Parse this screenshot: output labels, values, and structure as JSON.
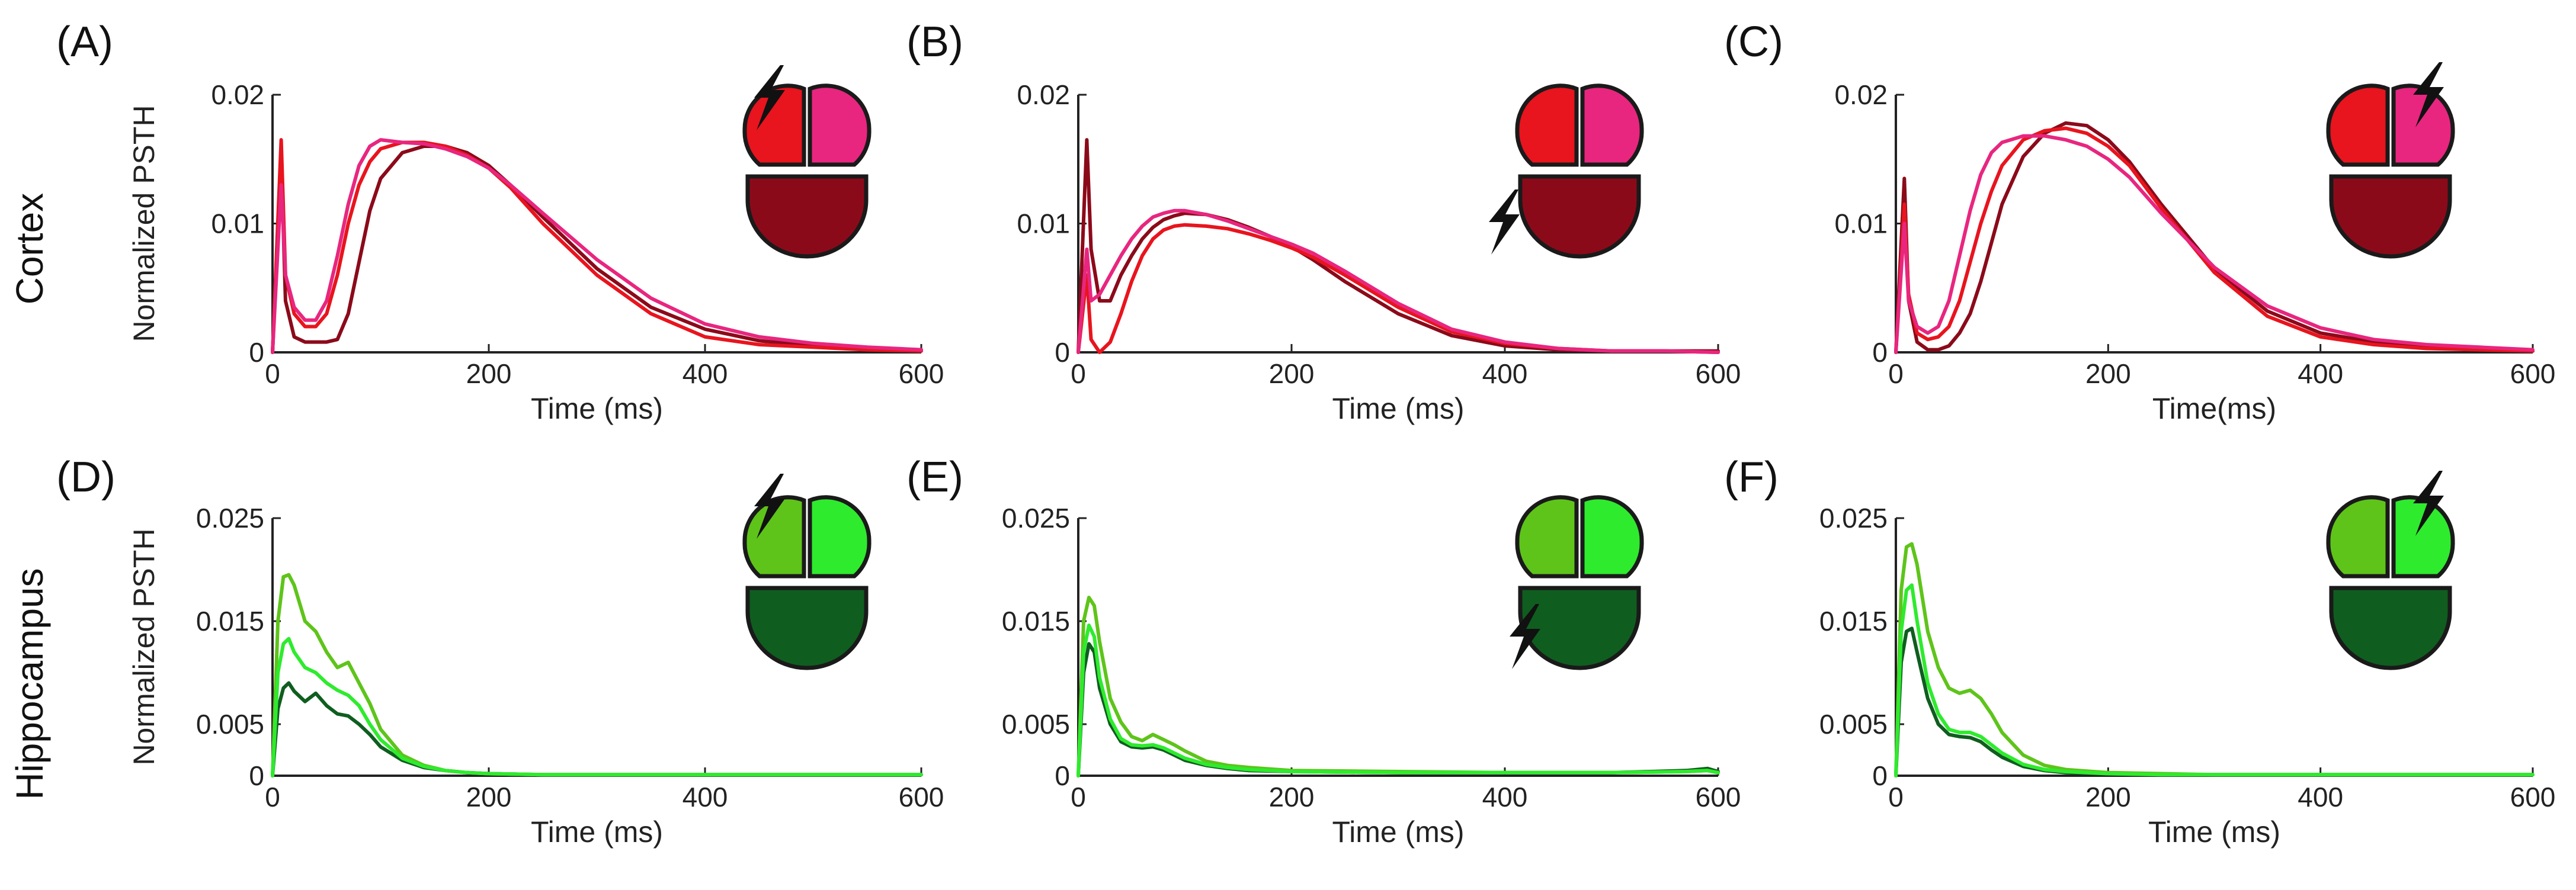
{
  "colors": {
    "cortex": [
      "#8B0A1A",
      "#E8141E",
      "#E8267F"
    ],
    "hippocampus": [
      "#0F5E1F",
      "#5EC41A",
      "#2EEB2E"
    ],
    "axis": "#222222"
  },
  "row_labels": {
    "cortex": "Cortex",
    "hippocampus": "Hippocampus"
  },
  "chart_data": [
    {
      "id": "A",
      "panel_label": "(A)",
      "row": "cortex",
      "type": "line",
      "ylabel": "Normalized PSTH",
      "xlabel": "Time (ms)",
      "xlim": [
        0,
        600
      ],
      "ylim": [
        0,
        0.02
      ],
      "xticks": [
        "0",
        "200",
        "400",
        "600"
      ],
      "yticks": [
        "0",
        "0.01",
        "0.02"
      ],
      "stimulated_region": "top-left",
      "bolt_icon": "lightning-bolt-icon",
      "x": [
        0,
        8,
        12,
        20,
        30,
        40,
        50,
        60,
        70,
        80,
        90,
        100,
        120,
        140,
        160,
        180,
        200,
        220,
        250,
        300,
        350,
        400,
        450,
        500,
        550,
        600
      ],
      "series": [
        {
          "name": "dark-red",
          "values": [
            0,
            0.015,
            0.004,
            0.0012,
            0.0008,
            0.0008,
            0.0008,
            0.001,
            0.003,
            0.007,
            0.011,
            0.0135,
            0.0155,
            0.016,
            0.016,
            0.0155,
            0.0145,
            0.013,
            0.0105,
            0.0065,
            0.0035,
            0.0018,
            0.0009,
            0.0005,
            0.0003,
            0.0002
          ]
        },
        {
          "name": "red",
          "values": [
            0,
            0.0165,
            0.006,
            0.003,
            0.002,
            0.002,
            0.003,
            0.006,
            0.01,
            0.013,
            0.0148,
            0.0158,
            0.0163,
            0.0163,
            0.016,
            0.0153,
            0.0143,
            0.0128,
            0.01,
            0.006,
            0.003,
            0.0012,
            0.0006,
            0.0004,
            0.0002,
            0.0001
          ]
        },
        {
          "name": "magenta",
          "values": [
            0,
            0.013,
            0.006,
            0.0035,
            0.0025,
            0.0025,
            0.004,
            0.0075,
            0.0115,
            0.0145,
            0.016,
            0.0165,
            0.0163,
            0.0162,
            0.0158,
            0.0152,
            0.0143,
            0.013,
            0.0108,
            0.0072,
            0.0042,
            0.0022,
            0.0012,
            0.0007,
            0.0004,
            0.0002
          ]
        }
      ]
    },
    {
      "id": "B",
      "panel_label": "(B)",
      "row": "cortex",
      "type": "line",
      "ylabel": "",
      "xlabel": "Time (ms)",
      "xlim": [
        0,
        600
      ],
      "ylim": [
        0,
        0.02
      ],
      "xticks": [
        "0",
        "200",
        "400",
        "600"
      ],
      "yticks": [
        "0",
        "0.01",
        "0.02"
      ],
      "stimulated_region": "bottom",
      "bolt_icon": "lightning-bolt-icon",
      "x": [
        0,
        8,
        12,
        20,
        30,
        40,
        50,
        60,
        70,
        80,
        90,
        100,
        120,
        140,
        160,
        180,
        200,
        220,
        250,
        300,
        350,
        400,
        450,
        500,
        550,
        600
      ],
      "series": [
        {
          "name": "dark-red",
          "values": [
            0,
            0.0165,
            0.008,
            0.004,
            0.004,
            0.006,
            0.0075,
            0.0088,
            0.0097,
            0.0103,
            0.0106,
            0.0108,
            0.0107,
            0.0103,
            0.0097,
            0.009,
            0.0082,
            0.0072,
            0.0055,
            0.003,
            0.0013,
            0.0005,
            0.0002,
            0.0001,
            0.0001,
            0.0001
          ]
        },
        {
          "name": "red",
          "values": [
            0,
            0.006,
            0.001,
            0.0,
            0.0008,
            0.003,
            0.0055,
            0.0075,
            0.0088,
            0.0095,
            0.0098,
            0.0099,
            0.0098,
            0.0096,
            0.0092,
            0.0087,
            0.0081,
            0.0074,
            0.006,
            0.0035,
            0.0016,
            0.0007,
            0.0003,
            0.0001,
            0.0001,
            0.0
          ]
        },
        {
          "name": "magenta",
          "values": [
            0,
            0.008,
            0.004,
            0.0045,
            0.006,
            0.0075,
            0.0088,
            0.0098,
            0.0105,
            0.0108,
            0.011,
            0.011,
            0.0107,
            0.0102,
            0.0096,
            0.009,
            0.0084,
            0.0077,
            0.0063,
            0.0038,
            0.0018,
            0.0008,
            0.0003,
            0.0001,
            0.0001,
            0.0
          ]
        }
      ]
    },
    {
      "id": "C",
      "panel_label": "(C)",
      "row": "cortex",
      "type": "line",
      "ylabel": "",
      "xlabel": "Time(ms)",
      "xlim": [
        0,
        600
      ],
      "ylim": [
        0,
        0.02
      ],
      "xticks": [
        "0",
        "200",
        "400",
        "600"
      ],
      "yticks": [
        "0",
        "0.01",
        "0.02"
      ],
      "stimulated_region": "top-right",
      "bolt_icon": "lightning-bolt-icon",
      "x": [
        0,
        8,
        12,
        20,
        30,
        40,
        50,
        60,
        70,
        80,
        90,
        100,
        120,
        140,
        160,
        180,
        200,
        220,
        250,
        300,
        350,
        400,
        450,
        500,
        550,
        600
      ],
      "series": [
        {
          "name": "dark-red",
          "values": [
            0,
            0.0135,
            0.004,
            0.0008,
            0.0002,
            0.0002,
            0.0005,
            0.0015,
            0.003,
            0.0055,
            0.0085,
            0.0115,
            0.0152,
            0.017,
            0.0178,
            0.0176,
            0.0165,
            0.0148,
            0.0115,
            0.0065,
            0.0032,
            0.0015,
            0.0008,
            0.0004,
            0.0002,
            0.0001
          ]
        },
        {
          "name": "red",
          "values": [
            0,
            0.0115,
            0.0045,
            0.0015,
            0.001,
            0.0012,
            0.002,
            0.004,
            0.007,
            0.01,
            0.0125,
            0.0145,
            0.0165,
            0.0172,
            0.0174,
            0.017,
            0.016,
            0.0145,
            0.0112,
            0.0062,
            0.0028,
            0.0012,
            0.0006,
            0.0003,
            0.0002,
            0.0001
          ]
        },
        {
          "name": "magenta",
          "values": [
            0,
            0.01,
            0.004,
            0.002,
            0.0015,
            0.002,
            0.004,
            0.0075,
            0.011,
            0.0138,
            0.0155,
            0.0163,
            0.0168,
            0.0168,
            0.0165,
            0.016,
            0.015,
            0.0136,
            0.0108,
            0.0066,
            0.0036,
            0.0019,
            0.001,
            0.0006,
            0.0004,
            0.0002
          ]
        }
      ]
    },
    {
      "id": "D",
      "panel_label": "(D)",
      "row": "hippocampus",
      "type": "line",
      "ylabel": "Normalized PSTH",
      "xlabel": "Time (ms)",
      "xlim": [
        0,
        600
      ],
      "ylim": [
        0,
        0.025
      ],
      "xticks": [
        "0",
        "200",
        "400",
        "600"
      ],
      "yticks": [
        "0",
        "0.005",
        "0.015",
        "0.025"
      ],
      "stimulated_region": "top-left",
      "bolt_icon": "lightning-bolt-icon",
      "x": [
        0,
        5,
        10,
        15,
        20,
        30,
        40,
        50,
        60,
        70,
        80,
        90,
        100,
        120,
        140,
        160,
        180,
        200,
        250,
        300,
        400,
        500,
        600
      ],
      "series": [
        {
          "name": "dark-green",
          "values": [
            0,
            0.0065,
            0.0085,
            0.009,
            0.0082,
            0.0072,
            0.008,
            0.0068,
            0.006,
            0.0058,
            0.005,
            0.004,
            0.0028,
            0.0015,
            0.0008,
            0.0005,
            0.0003,
            0.0002,
            0.0001,
            0.0001,
            0.0001,
            0.0001,
            0.0001
          ]
        },
        {
          "name": "yellow-green",
          "values": [
            0,
            0.015,
            0.0193,
            0.0195,
            0.0185,
            0.015,
            0.014,
            0.012,
            0.0105,
            0.011,
            0.009,
            0.007,
            0.0045,
            0.002,
            0.001,
            0.0005,
            0.0003,
            0.0002,
            0.0001,
            0.0001,
            0.0001,
            0.0001,
            0.0001
          ]
        },
        {
          "name": "bright-green",
          "values": [
            0,
            0.01,
            0.0128,
            0.0133,
            0.012,
            0.0105,
            0.01,
            0.009,
            0.0083,
            0.0078,
            0.0068,
            0.005,
            0.0035,
            0.0017,
            0.0009,
            0.0005,
            0.0003,
            0.0002,
            0.0001,
            0.0001,
            0.0001,
            0.0001,
            0.0001
          ]
        }
      ]
    },
    {
      "id": "E",
      "panel_label": "(E)",
      "row": "hippocampus",
      "type": "line",
      "ylabel": "",
      "xlabel": "Time (ms)",
      "xlim": [
        0,
        600
      ],
      "ylim": [
        0,
        0.025
      ],
      "xticks": [
        "0",
        "200",
        "400",
        "600"
      ],
      "yticks": [
        "0",
        "0.005",
        "0.015",
        "0.025"
      ],
      "stimulated_region": "bottom",
      "bolt_icon": "lightning-bolt-icon",
      "x": [
        0,
        5,
        10,
        15,
        20,
        30,
        40,
        50,
        60,
        70,
        80,
        90,
        100,
        120,
        140,
        160,
        200,
        300,
        400,
        500,
        570,
        590,
        600
      ],
      "series": [
        {
          "name": "dark-green",
          "values": [
            0,
            0.01,
            0.0128,
            0.012,
            0.0085,
            0.005,
            0.0033,
            0.0028,
            0.0027,
            0.0028,
            0.0025,
            0.002,
            0.0015,
            0.001,
            0.0007,
            0.0005,
            0.0004,
            0.0003,
            0.0003,
            0.0003,
            0.0005,
            0.0007,
            0.0004
          ]
        },
        {
          "name": "yellow-green",
          "values": [
            0,
            0.015,
            0.0173,
            0.0165,
            0.013,
            0.0075,
            0.0052,
            0.0038,
            0.0034,
            0.004,
            0.0035,
            0.003,
            0.0024,
            0.0014,
            0.001,
            0.0008,
            0.0005,
            0.0004,
            0.0003,
            0.0003,
            0.0004,
            0.0005,
            0.0003
          ]
        },
        {
          "name": "bright-green",
          "values": [
            0,
            0.012,
            0.0146,
            0.0135,
            0.0095,
            0.0055,
            0.0036,
            0.003,
            0.0029,
            0.003,
            0.0027,
            0.0022,
            0.0017,
            0.0011,
            0.0008,
            0.0006,
            0.0004,
            0.0003,
            0.0003,
            0.0003,
            0.0004,
            0.0005,
            0.0003
          ]
        }
      ]
    },
    {
      "id": "F",
      "panel_label": "(F)",
      "row": "hippocampus",
      "type": "line",
      "ylabel": "",
      "xlabel": "Time (ms)",
      "xlim": [
        0,
        600
      ],
      "ylim": [
        0,
        0.025
      ],
      "xticks": [
        "0",
        "200",
        "400",
        "600"
      ],
      "yticks": [
        "0",
        "0.005",
        "0.015",
        "0.025"
      ],
      "stimulated_region": "top-right",
      "bolt_icon": "lightning-bolt-icon",
      "x": [
        0,
        5,
        10,
        15,
        20,
        30,
        40,
        50,
        60,
        70,
        80,
        90,
        100,
        120,
        140,
        160,
        200,
        250,
        300,
        400,
        500,
        600
      ],
      "series": [
        {
          "name": "dark-green",
          "values": [
            0,
            0.011,
            0.014,
            0.0143,
            0.012,
            0.0075,
            0.005,
            0.004,
            0.0038,
            0.0037,
            0.0033,
            0.0025,
            0.0018,
            0.0009,
            0.0005,
            0.0003,
            0.0002,
            0.0001,
            0.0001,
            0.0001,
            0.0001,
            0.0001
          ]
        },
        {
          "name": "yellow-green",
          "values": [
            0,
            0.018,
            0.0222,
            0.0225,
            0.0205,
            0.014,
            0.0105,
            0.0085,
            0.008,
            0.0083,
            0.0075,
            0.006,
            0.0042,
            0.002,
            0.001,
            0.0006,
            0.0003,
            0.0002,
            0.0001,
            0.0001,
            0.0001,
            0.0001
          ]
        },
        {
          "name": "bright-green",
          "values": [
            0,
            0.014,
            0.018,
            0.0185,
            0.015,
            0.009,
            0.006,
            0.0045,
            0.0042,
            0.0042,
            0.0038,
            0.003,
            0.0022,
            0.0011,
            0.0006,
            0.0004,
            0.0002,
            0.0001,
            0.0001,
            0.0001,
            0.0001,
            0.0001
          ]
        }
      ]
    }
  ]
}
